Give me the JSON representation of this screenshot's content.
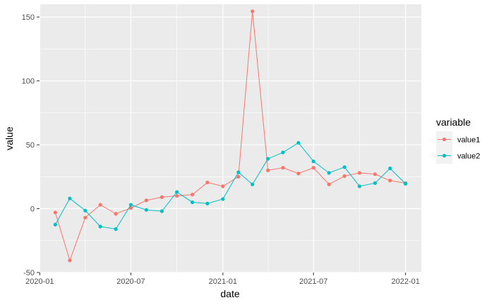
{
  "chart_data": {
    "type": "line",
    "xlabel": "date",
    "ylabel": "value",
    "ylim": [
      -50,
      160
    ],
    "y_ticks": [
      -50,
      0,
      50,
      100,
      150
    ],
    "x_ticks": [
      "2020-01",
      "2020-07",
      "2021-01",
      "2021-07",
      "2022-01"
    ],
    "grid": true,
    "legend": {
      "title": "variable",
      "placement": "right"
    },
    "x": [
      "2020-02-01",
      "2020-03-01",
      "2020-04-01",
      "2020-05-01",
      "2020-06-01",
      "2020-07-01",
      "2020-08-01",
      "2020-09-01",
      "2020-10-01",
      "2020-11-01",
      "2020-12-01",
      "2021-01-01",
      "2021-02-01",
      "2021-03-01",
      "2021-04-01",
      "2021-05-01",
      "2021-06-01",
      "2021-07-01",
      "2021-08-01",
      "2021-09-01",
      "2021-10-01",
      "2021-11-01",
      "2021-12-01",
      "2022-01-01"
    ],
    "series": [
      {
        "name": "value1",
        "color": "#F8766D",
        "values": [
          -3,
          -40.5,
          -7,
          3,
          -4,
          0.5,
          6.5,
          9,
          10,
          11,
          20.5,
          17.5,
          25,
          154.5,
          30,
          32,
          27.5,
          32,
          19,
          25.5,
          28,
          27,
          22,
          20
        ]
      },
      {
        "name": "value2",
        "color": "#00BFC4",
        "values": [
          -12.5,
          8,
          -1.5,
          -14,
          -16,
          3,
          -1,
          -2,
          13,
          5,
          4,
          7.5,
          28.5,
          19,
          39,
          44,
          51.5,
          37,
          28,
          32.5,
          17.5,
          20,
          31.5,
          19.5
        ]
      }
    ]
  }
}
